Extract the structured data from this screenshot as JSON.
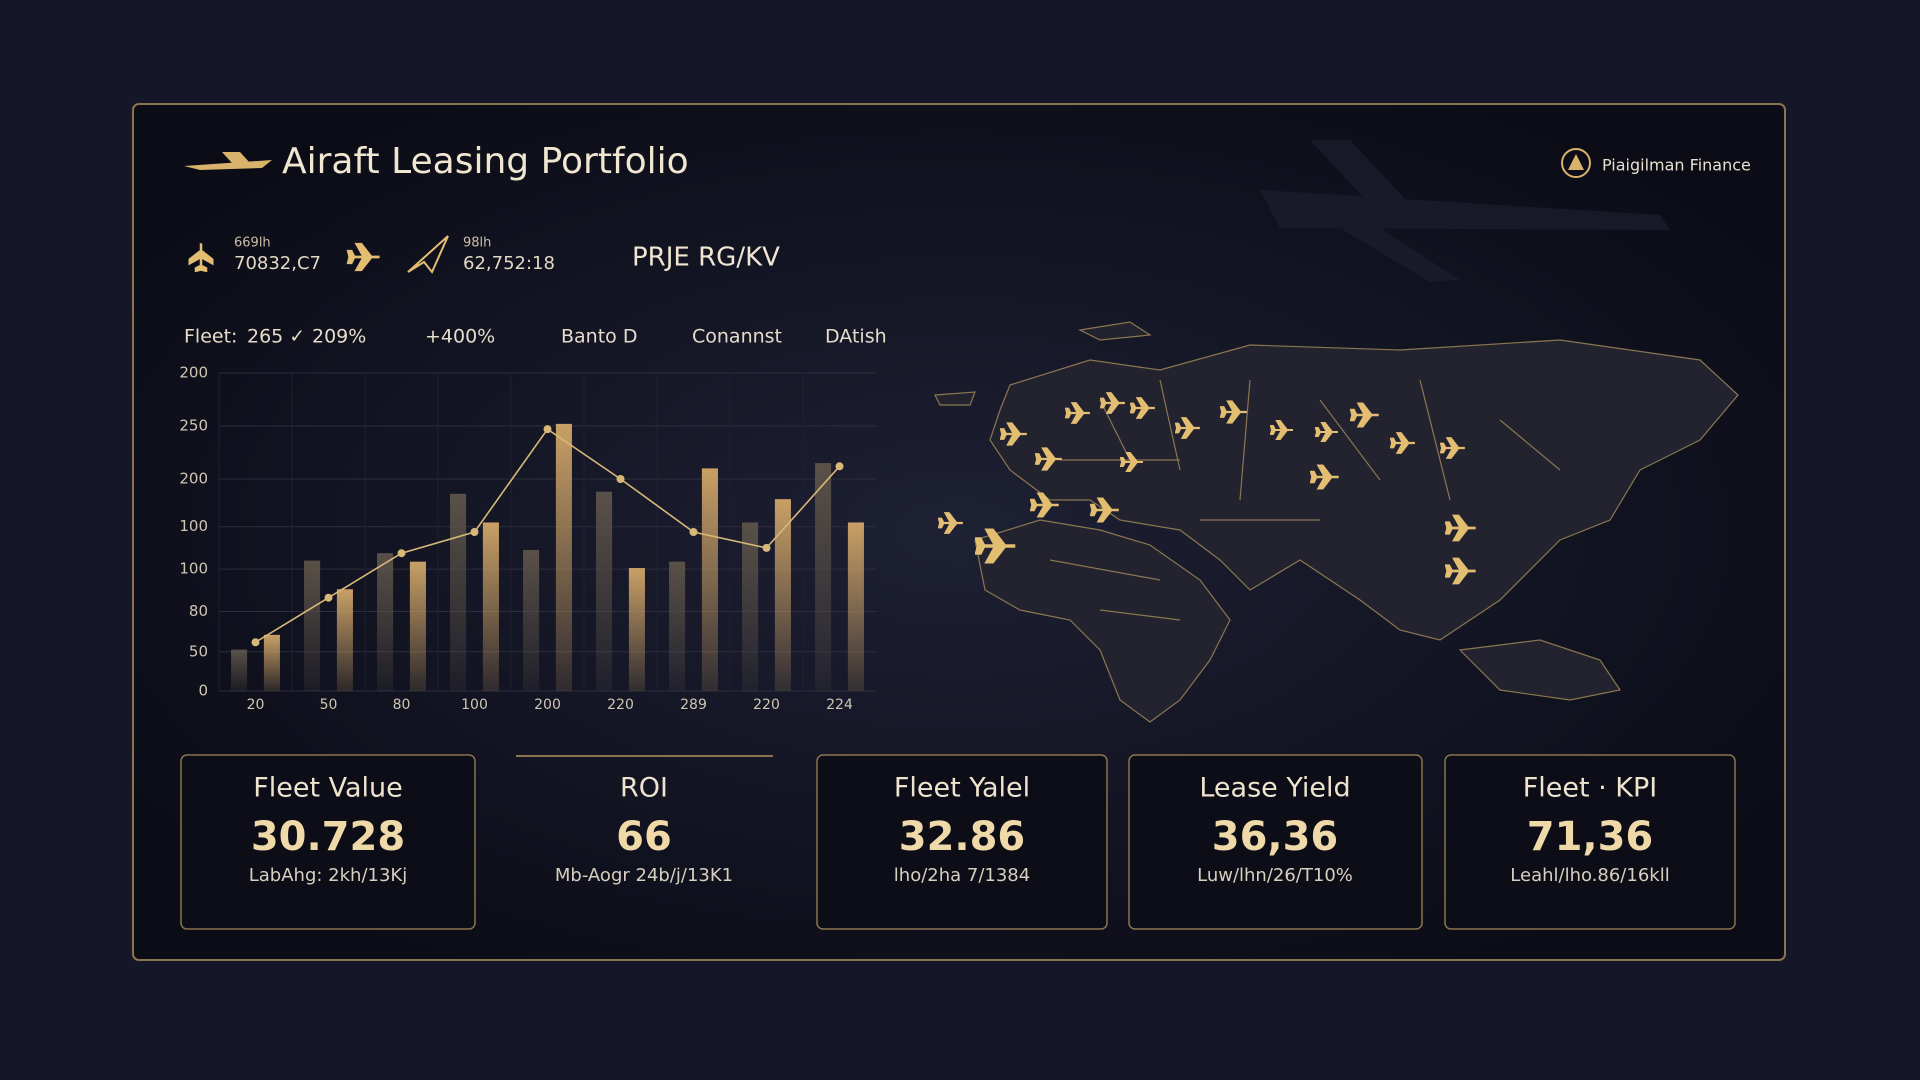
{
  "header": {
    "title": "Airaft Leasing Portfolio",
    "brand": "Piaigilman Finance"
  },
  "stats": [
    {
      "label": "669lh",
      "value": "70832,C7"
    },
    {
      "label": "98lh",
      "value": "62,752:18"
    }
  ],
  "badge": "PRJE RG/KV",
  "filters": [
    "Fleet:",
    "265 ✓",
    "209%",
    "+400%",
    "Banto D",
    "Conannst",
    "DAtish"
  ],
  "chart_data": {
    "type": "bar",
    "categories": [
      "20",
      "50",
      "80",
      "100",
      "200",
      "220",
      "289",
      "220",
      "224"
    ],
    "series": [
      {
        "color": "#5a5148",
        "values": [
          39,
          123,
          130,
          186,
          133,
          188,
          122,
          159,
          215
        ]
      },
      {
        "color": "#c9a066",
        "values": [
          53,
          96,
          122,
          159,
          252,
          116,
          210,
          181,
          159
        ]
      },
      {
        "type": "line",
        "color": "#d8b878",
        "values": [
          46,
          88,
          130,
          150,
          247,
          200,
          150,
          135,
          212
        ]
      }
    ],
    "ylim": [
      0,
      300
    ],
    "yticks": [
      0,
      {
        "value": 37,
        "label": "50"
      },
      {
        "value": 75,
        "label": "80"
      },
      {
        "value": 115,
        "label": "100"
      },
      {
        "value": 155,
        "label": "100"
      },
      200,
      250,
      {
        "value": 300,
        "label": "200"
      }
    ],
    "grid": true
  },
  "kpis": [
    {
      "title": "Fleet Value",
      "value": "30.728",
      "sub": "LabAhg: 2kh/13Kj"
    },
    {
      "title": "ROI",
      "value": "66",
      "sub": "Mb-Aogr 24b/j/13K1"
    },
    {
      "title": "Fleet Yalel",
      "value": "32.86",
      "sub": "lho/2ha 7/1384"
    },
    {
      "title": "Lease Yield",
      "value": "36,36",
      "sub": "Luw/lhn/26/T10%"
    },
    {
      "title": "Fleet · KPI",
      "value": "71,36",
      "sub": "Leahl/lho.86/16kll"
    }
  ]
}
